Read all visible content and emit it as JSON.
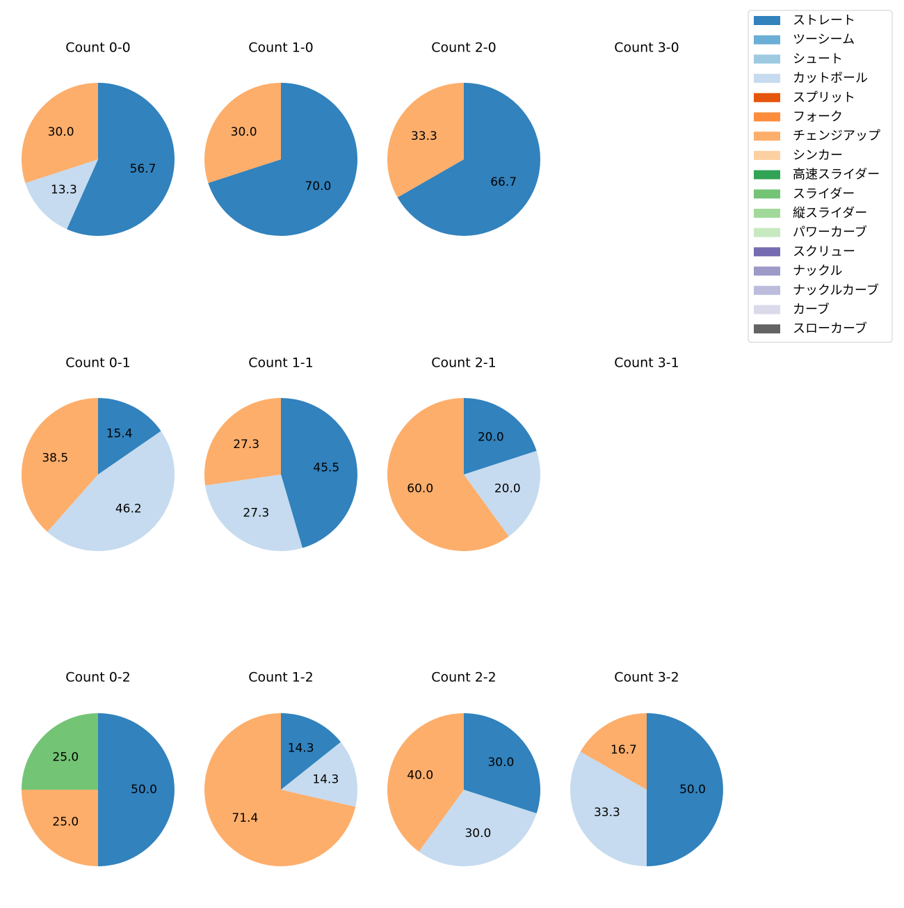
{
  "colors": {
    "ストレート": "#3182bd",
    "ツーシーム": "#6baed6",
    "シュート": "#9ecae1",
    "カットボール": "#c6dbef",
    "スプリット": "#e6550d",
    "フォーク": "#fd8d3c",
    "チェンジアップ": "#fdae6b",
    "シンカー": "#fdd0a2",
    "高速スライダー": "#31a354",
    "スライダー": "#74c476",
    "縦スライダー": "#a1d99b",
    "パワーカーブ": "#c7e9c0",
    "スクリュー": "#756bb1",
    "ナックル": "#9e9ac8",
    "ナックルカーブ": "#bcbddc",
    "カーブ": "#dadaeb",
    "スローカーブ": "#636363"
  },
  "legend": {
    "placement": "top-right",
    "items": [
      "ストレート",
      "ツーシーム",
      "シュート",
      "カットボール",
      "スプリット",
      "フォーク",
      "チェンジアップ",
      "シンカー",
      "高速スライダー",
      "スライダー",
      "縦スライダー",
      "パワーカーブ",
      "スクリュー",
      "ナックル",
      "ナックルカーブ",
      "カーブ",
      "スローカーブ"
    ]
  },
  "chart_data": [
    {
      "type": "pie",
      "title": "Count 0-0",
      "slices": [
        {
          "label": "ストレート",
          "value": 56.7,
          "text": "56.7"
        },
        {
          "label": "カットボール",
          "value": 13.3,
          "text": "13.3"
        },
        {
          "label": "チェンジアップ",
          "value": 30.0,
          "text": "30.0"
        }
      ]
    },
    {
      "type": "pie",
      "title": "Count 1-0",
      "slices": [
        {
          "label": "ストレート",
          "value": 70.0,
          "text": "70.0"
        },
        {
          "label": "チェンジアップ",
          "value": 30.0,
          "text": "30.0"
        }
      ]
    },
    {
      "type": "pie",
      "title": "Count 2-0",
      "slices": [
        {
          "label": "ストレート",
          "value": 66.7,
          "text": "66.7"
        },
        {
          "label": "チェンジアップ",
          "value": 33.3,
          "text": "33.3"
        }
      ]
    },
    {
      "type": "pie",
      "title": "Count 3-0",
      "slices": []
    },
    {
      "type": "pie",
      "title": "Count 0-1",
      "slices": [
        {
          "label": "ストレート",
          "value": 15.4,
          "text": "15.4"
        },
        {
          "label": "カットボール",
          "value": 46.2,
          "text": "46.2"
        },
        {
          "label": "チェンジアップ",
          "value": 38.5,
          "text": "38.5"
        }
      ]
    },
    {
      "type": "pie",
      "title": "Count 1-1",
      "slices": [
        {
          "label": "ストレート",
          "value": 45.5,
          "text": "45.5"
        },
        {
          "label": "カットボール",
          "value": 27.3,
          "text": "27.3"
        },
        {
          "label": "チェンジアップ",
          "value": 27.3,
          "text": "27.3"
        }
      ]
    },
    {
      "type": "pie",
      "title": "Count 2-1",
      "slices": [
        {
          "label": "ストレート",
          "value": 20.0,
          "text": "20.0"
        },
        {
          "label": "カットボール",
          "value": 20.0,
          "text": "20.0"
        },
        {
          "label": "チェンジアップ",
          "value": 60.0,
          "text": "60.0"
        }
      ]
    },
    {
      "type": "pie",
      "title": "Count 3-1",
      "slices": []
    },
    {
      "type": "pie",
      "title": "Count 0-2",
      "slices": [
        {
          "label": "ストレート",
          "value": 50.0,
          "text": "50.0"
        },
        {
          "label": "チェンジアップ",
          "value": 25.0,
          "text": "25.0"
        },
        {
          "label": "スライダー",
          "value": 25.0,
          "text": "25.0"
        }
      ]
    },
    {
      "type": "pie",
      "title": "Count 1-2",
      "slices": [
        {
          "label": "ストレート",
          "value": 14.3,
          "text": "14.3"
        },
        {
          "label": "カットボール",
          "value": 14.3,
          "text": "14.3"
        },
        {
          "label": "チェンジアップ",
          "value": 71.4,
          "text": "71.4"
        }
      ]
    },
    {
      "type": "pie",
      "title": "Count 2-2",
      "slices": [
        {
          "label": "ストレート",
          "value": 30.0,
          "text": "30.0"
        },
        {
          "label": "カットボール",
          "value": 30.0,
          "text": "30.0"
        },
        {
          "label": "チェンジアップ",
          "value": 40.0,
          "text": "40.0"
        }
      ]
    },
    {
      "type": "pie",
      "title": "Count 3-2",
      "slices": [
        {
          "label": "ストレート",
          "value": 50.0,
          "text": "50.0"
        },
        {
          "label": "カットボール",
          "value": 33.3,
          "text": "33.3"
        },
        {
          "label": "チェンジアップ",
          "value": 16.7,
          "text": "16.7"
        }
      ]
    }
  ]
}
